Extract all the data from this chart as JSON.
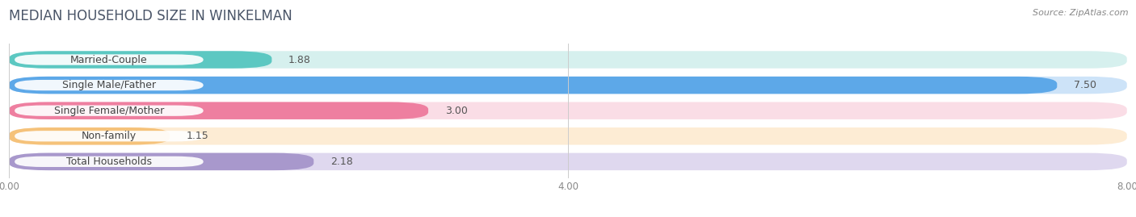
{
  "title": "MEDIAN HOUSEHOLD SIZE IN WINKELMAN",
  "source": "Source: ZipAtlas.com",
  "categories": [
    "Married-Couple",
    "Single Male/Father",
    "Single Female/Mother",
    "Non-family",
    "Total Households"
  ],
  "values": [
    1.88,
    7.5,
    3.0,
    1.15,
    2.18
  ],
  "bar_colors": [
    "#5cc8c2",
    "#5da8e8",
    "#ee7fa0",
    "#f5c27a",
    "#a898cc"
  ],
  "bar_bg_colors": [
    "#d6f0ee",
    "#cde3f8",
    "#fadde6",
    "#fdecd4",
    "#dfd8ef"
  ],
  "xlim": [
    0,
    8.0
  ],
  "xtick_labels": [
    "0.00",
    "4.00",
    "8.00"
  ],
  "value_fontsize": 9,
  "label_fontsize": 9,
  "title_fontsize": 12,
  "title_color": "#4a5568",
  "source_fontsize": 8
}
